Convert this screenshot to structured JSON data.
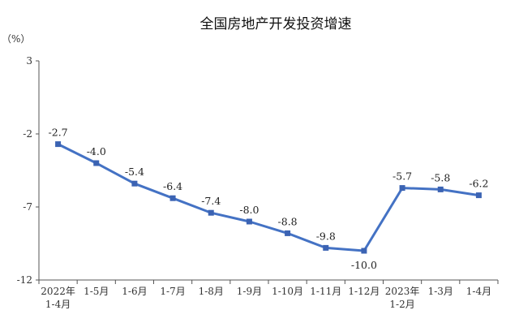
{
  "chart_data": {
    "type": "line",
    "title": "全国房地产开发投资增速",
    "ylabel": "（%）",
    "xlabel": "",
    "ylim": [
      -12,
      3
    ],
    "yticks": [
      3,
      -2,
      -7,
      -12
    ],
    "grid": false,
    "categories": [
      [
        "2022年",
        "1-4月"
      ],
      [
        "1-5月"
      ],
      [
        "1-6月"
      ],
      [
        "1-7月"
      ],
      [
        "1-8月"
      ],
      [
        "1-9月"
      ],
      [
        "1-10月"
      ],
      [
        "1-11月"
      ],
      [
        "1-12月"
      ],
      [
        "2023年",
        "1-2月"
      ],
      [
        "1-3月"
      ],
      [
        "1-4月"
      ]
    ],
    "series": [
      {
        "values": [
          -2.7,
          -4.0,
          -5.4,
          -6.4,
          -7.4,
          -8.0,
          -8.8,
          -9.8,
          -10.0,
          -5.7,
          -5.8,
          -6.2
        ],
        "labels": [
          "-2.7",
          "-4.0",
          "-5.4",
          "-6.4",
          "-7.4",
          "-8.0",
          "-8.8",
          "-9.8",
          "-10.0",
          "-5.7",
          "-5.8",
          "-6.2"
        ],
        "color": "#4472c4"
      }
    ]
  }
}
